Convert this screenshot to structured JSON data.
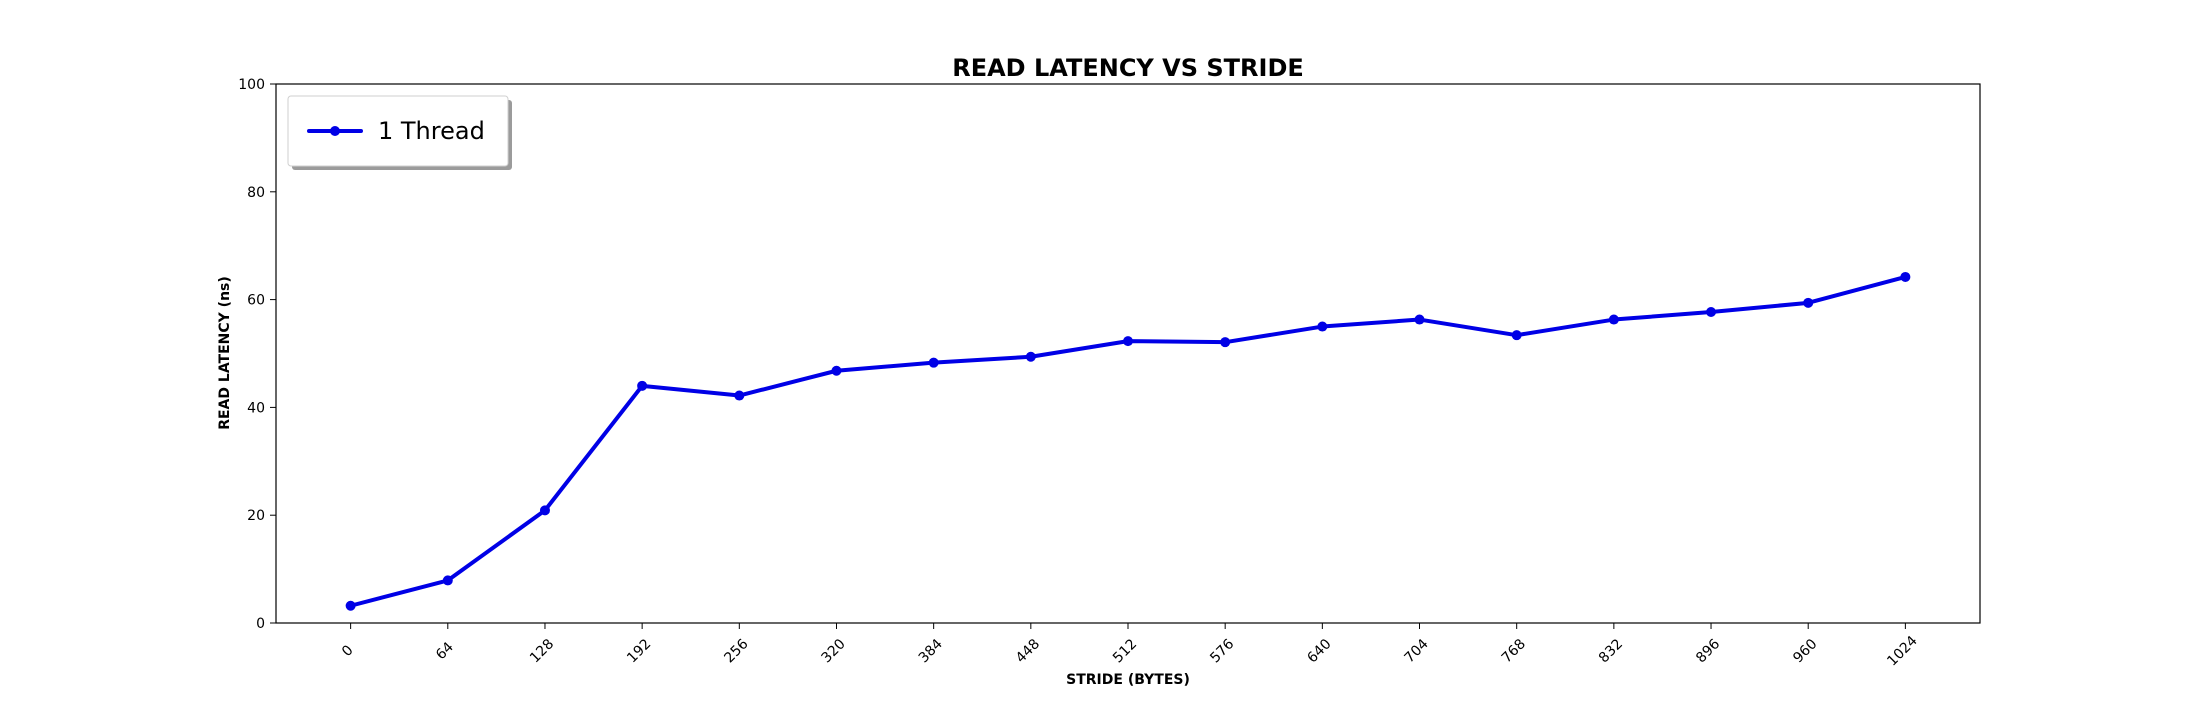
{
  "chart_data": {
    "type": "line",
    "title": "READ LATENCY VS STRIDE",
    "xlabel": "STRIDE (BYTES)",
    "ylabel": "READ LATENCY (ns)",
    "x": [
      0,
      64,
      128,
      192,
      256,
      320,
      384,
      448,
      512,
      576,
      640,
      704,
      768,
      832,
      896,
      960,
      1024
    ],
    "series": [
      {
        "name": "1 Thread",
        "color": "#0000e6",
        "marker": "circle",
        "values": [
          3.2,
          7.9,
          20.9,
          44.0,
          42.2,
          46.8,
          48.3,
          49.4,
          52.3,
          52.1,
          55.0,
          56.3,
          53.4,
          56.3,
          57.7,
          59.4,
          64.2
        ]
      }
    ],
    "ylim": [
      0,
      100
    ],
    "yticks": [
      0,
      20,
      40,
      60,
      80,
      100
    ],
    "xtick_rotation": 45,
    "grid": false,
    "legend_position": "top-left"
  }
}
